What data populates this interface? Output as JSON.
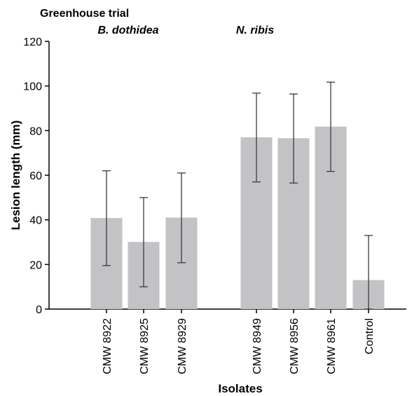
{
  "chart_data": {
    "type": "bar",
    "title": "Greenhouse trial",
    "groups": [
      {
        "name": "B. dothidea",
        "categories": [
          "CMW 8922",
          "CMW 8925",
          "CMW 8929"
        ]
      },
      {
        "name": "N. ribis",
        "categories": [
          "CMW 8949",
          "CMW 8956",
          "CMW 8961"
        ]
      }
    ],
    "categories": [
      "CMW 8922",
      "CMW 8925",
      "CMW 8929",
      "CMW 8949",
      "CMW 8956",
      "CMW 8961",
      "Control"
    ],
    "values": [
      40.8,
      30.1,
      41.0,
      77.0,
      76.6,
      81.8,
      13.0
    ],
    "error_low": [
      19.5,
      10.0,
      20.8,
      57.0,
      56.5,
      61.7,
      0
    ],
    "error_high": [
      62.0,
      50.0,
      61.0,
      96.8,
      96.4,
      101.7,
      33.0
    ],
    "xlabel": "Isolates",
    "ylabel": "Lesion length (mm)",
    "ylim": [
      0,
      120
    ],
    "yticks": [
      0,
      20,
      40,
      60,
      80,
      100,
      120
    ],
    "grid": false,
    "colors": {
      "bar": "#c3c3c6",
      "error": "#3a3a3a",
      "axis": "#000000"
    }
  }
}
